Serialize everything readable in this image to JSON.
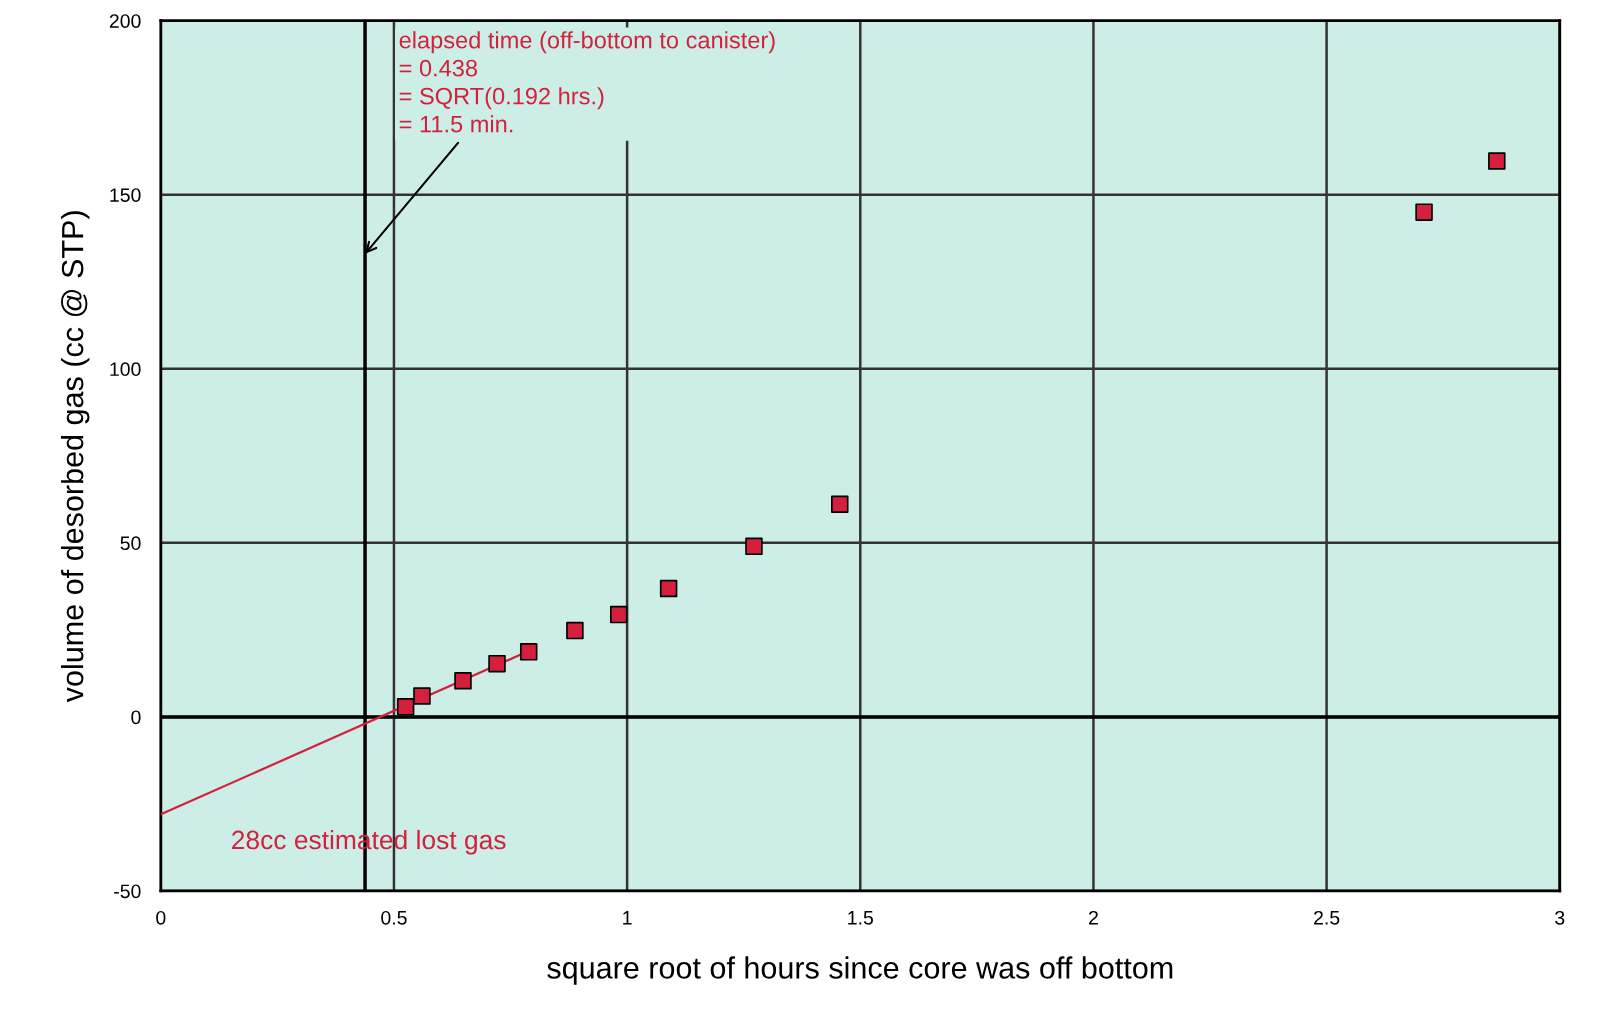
{
  "chart_data": {
    "type": "scatter",
    "xlabel": "square root of hours since core was off bottom",
    "ylabel": "volume of desorbed gas (cc @ STP)",
    "series": [
      {
        "type": "scatter",
        "color": "#d4203c",
        "marker": "square",
        "x": [
          0.525,
          0.56,
          0.648,
          0.721,
          0.789,
          0.888,
          0.982,
          1.089,
          1.272,
          1.456,
          2.709,
          2.865
        ],
        "values": [
          2.9,
          6,
          10.4,
          15.3,
          18.7,
          24.8,
          29.4,
          36.9,
          49,
          61.1,
          145,
          159.7
        ]
      },
      {
        "type": "line",
        "color": "#d4203c",
        "marker": "none",
        "line_style": "solid",
        "x": [
          0,
          0.79
        ],
        "values": [
          -28,
          19
        ]
      }
    ],
    "xlim": [
      0,
      3
    ],
    "ylim": [
      -50,
      200
    ],
    "xticks": [
      0,
      0.5,
      1,
      1.5,
      2,
      2.5,
      3
    ],
    "yticks": [
      -50,
      0,
      50,
      100,
      150,
      200
    ],
    "grid": true,
    "legend": false,
    "ref_lines": [
      {
        "axis": "x",
        "value": 0.438,
        "color": "#000000"
      },
      {
        "axis": "y",
        "value": 0,
        "color": "#000000"
      }
    ],
    "annotations": [
      {
        "text": "elapsed time (off-bottom to canister)\n= 0.438\n= SQRT(0.192 hrs.)\n= 11.5 min.",
        "x": 0.438,
        "y": 133
      },
      "28cc estimated lost gas"
    ]
  }
}
